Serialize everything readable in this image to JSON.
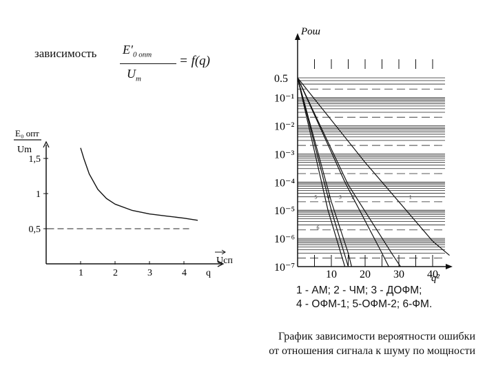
{
  "intro_label": "зависимость",
  "formula": {
    "numerator": "E′",
    "numerator_sub": "0 опт",
    "denominator": "U",
    "denominator_sub": "m",
    "rhs": "= f(q)"
  },
  "caption": {
    "line1": "График зависимости вероятности ошибки",
    "line2": "от отношения сигнала к шуму по мощности"
  },
  "legend": {
    "line1": "1 - АМ; 2 - ЧМ; 3 - ДОФМ;",
    "line2": "4 - ОФМ-1; 5-ОФМ-2; 6-ФМ."
  },
  "chart_data": [
    {
      "type": "line",
      "title": "",
      "ylabel_top": "E₀ опт",
      "ylabel_bottom": "Um",
      "xlabel": "Uсп",
      "xlim": [
        0,
        4.8
      ],
      "ylim": [
        0,
        1.9
      ],
      "x_ticks": [
        {
          "value": 1,
          "label": "1"
        },
        {
          "value": 2,
          "label": "2"
        },
        {
          "value": 3,
          "label": "3"
        },
        {
          "value": 4,
          "label": "4"
        },
        {
          "value": 4.7,
          "label": "q"
        }
      ],
      "y_ticks": [
        {
          "value": 0.5,
          "label": "0,5"
        },
        {
          "value": 1,
          "label": "1"
        },
        {
          "value": 1.5,
          "label": "1,5"
        }
      ],
      "asymptote": {
        "y": 0.5,
        "style": "dashed",
        "x_range": [
          0.05,
          4.2
        ]
      },
      "series": [
        {
          "x": [
            1.0,
            1.1,
            1.25,
            1.5,
            1.75,
            2.0,
            2.5,
            3.0,
            3.5,
            4.0,
            4.4
          ],
          "y": [
            1.65,
            1.49,
            1.28,
            1.06,
            0.93,
            0.85,
            0.76,
            0.71,
            0.68,
            0.65,
            0.62
          ]
        }
      ]
    },
    {
      "type": "line",
      "title": "",
      "ylabel": "Pош",
      "xlabel": "q²",
      "yscale": "log",
      "xlim": [
        0,
        45
      ],
      "ylim": [
        1e-07,
        0.5
      ],
      "grid": true,
      "x_ticks": [
        "10",
        "20",
        "30",
        "40"
      ],
      "y_ticks": [
        {
          "value": 0.5,
          "label": "0.5"
        },
        {
          "value": 0.1,
          "label": "10⁻¹"
        },
        {
          "value": 0.01,
          "label": "10⁻²"
        },
        {
          "value": 0.001,
          "label": "10⁻³"
        },
        {
          "value": 0.0001,
          "label": "10⁻⁴"
        },
        {
          "value": 1e-05,
          "label": "10⁻⁵"
        },
        {
          "value": 1e-06,
          "label": "10⁻⁶"
        },
        {
          "value": 1e-07,
          "label": "10⁻⁷"
        }
      ],
      "series": [
        {
          "name": "1",
          "x": [
            0,
            20,
            40,
            45
          ],
          "y": [
            0.5,
            0.0005,
            8e-07,
            2.5e-07
          ]
        },
        {
          "name": "2",
          "x": [
            0,
            15,
            28,
            30.5
          ],
          "y": [
            0.5,
            8e-05,
            2.8e-07,
            1e-07
          ]
        },
        {
          "name": "3",
          "x": [
            0,
            14,
            25,
            27
          ],
          "y": [
            0.5,
            0.0001,
            3e-07,
            1e-07
          ]
        },
        {
          "name": "4",
          "x": [
            0,
            10,
            15,
            16
          ],
          "y": [
            0.5,
            2e-05,
            3e-07,
            1e-07
          ]
        },
        {
          "name": "5",
          "x": [
            0,
            10,
            14,
            15
          ],
          "y": [
            0.5,
            1e-05,
            2.5e-07,
            1e-07
          ]
        },
        {
          "name": "6",
          "x": [
            0,
            9,
            13,
            14
          ],
          "y": [
            0.5,
            1e-05,
            2.5e-07,
            1e-07
          ]
        }
      ]
    }
  ]
}
